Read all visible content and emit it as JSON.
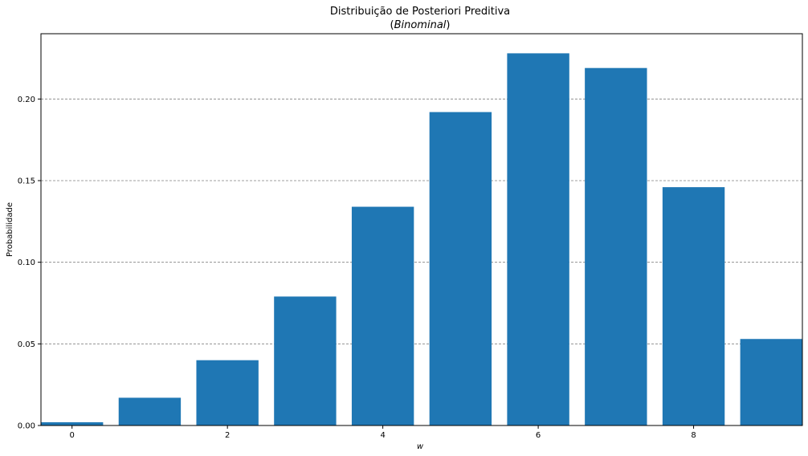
{
  "chart_data": {
    "type": "bar",
    "title": "Distribuição de Posteriori Preditiva",
    "subtitle": "(Binominal)",
    "subtitle_prefix": "(",
    "subtitle_italic": "Binominal",
    "subtitle_suffix": ")",
    "xlabel": "w",
    "ylabel": "Probabilidade",
    "x": [
      0,
      1,
      2,
      3,
      4,
      5,
      6,
      7,
      8,
      9
    ],
    "values": [
      0.002,
      0.017,
      0.04,
      0.079,
      0.134,
      0.192,
      0.228,
      0.219,
      0.146,
      0.053
    ],
    "xlim": [
      -0.4,
      9.4
    ],
    "ylim": [
      0,
      0.24
    ],
    "xticks": [
      0,
      2,
      4,
      6,
      8
    ],
    "xtick_labels": [
      "0",
      "2",
      "4",
      "6",
      "8"
    ],
    "yticks": [
      0.0,
      0.05,
      0.1,
      0.15,
      0.2
    ],
    "ytick_labels": [
      "0.00",
      "0.05",
      "0.10",
      "0.15",
      "0.20"
    ],
    "grid": "horizontal dashed",
    "bar_color": "#1f77b4",
    "grid_color": "#808080"
  }
}
